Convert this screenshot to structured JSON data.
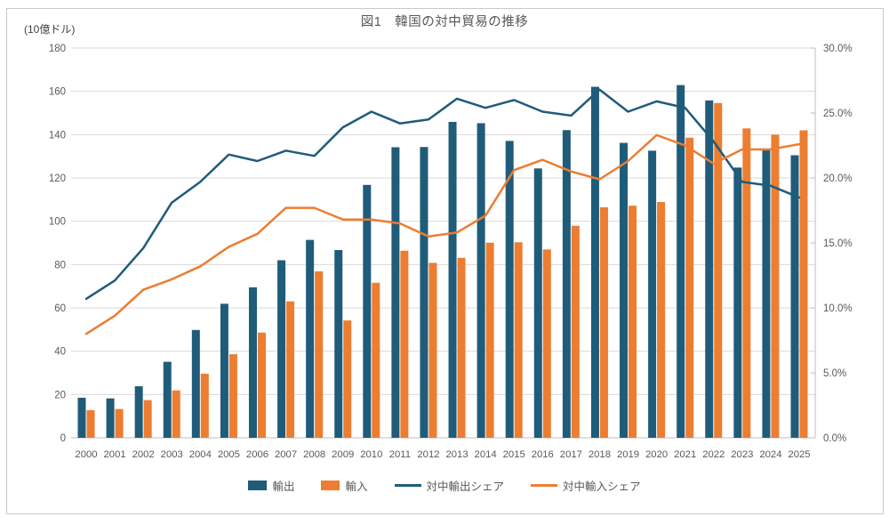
{
  "title": "図1　韓国の対中貿易の推移",
  "colors": {
    "bar_blue": "#1f5c7a",
    "bar_orange": "#ed7d31",
    "line_blue": "#1f5c7a",
    "line_orange": "#ed7d31",
    "gridline": "#d9d9d9",
    "axis_line": "#bfbfbf",
    "tick_text": "#595959",
    "title_text": "#595959"
  },
  "chart_data": {
    "type": "bar+line combo",
    "title": "図1　韓国の対中貿易の推移",
    "categories": [
      2000,
      2001,
      2002,
      2003,
      2004,
      2005,
      2006,
      2007,
      2008,
      2009,
      2010,
      2011,
      2012,
      2013,
      2014,
      2015,
      2016,
      2017,
      2018,
      2019,
      2020,
      2021,
      2022,
      2023,
      2024,
      2025
    ],
    "left_axis": {
      "label": "(10億ドル)",
      "min": 0,
      "max": 180,
      "step": 20
    },
    "right_axis": {
      "min": 0,
      "max": 30,
      "step": 5,
      "format": "percent_one_decimal"
    },
    "grid": "horizontal only",
    "legend_position": "bottom",
    "series": [
      {
        "name": "輸出",
        "type": "bar",
        "axis": "left",
        "values": [
          18.5,
          18.2,
          23.8,
          35.1,
          49.8,
          61.9,
          69.5,
          82.0,
          91.4,
          86.7,
          116.8,
          134.2,
          134.3,
          145.9,
          145.3,
          137.1,
          124.4,
          142.1,
          162.1,
          136.2,
          132.6,
          162.9,
          155.8,
          124.8,
          133.0,
          130.5
        ]
      },
      {
        "name": "輸入",
        "type": "bar",
        "axis": "left",
        "values": [
          12.8,
          13.3,
          17.4,
          21.9,
          29.6,
          38.6,
          48.6,
          63.0,
          76.9,
          54.2,
          71.6,
          86.4,
          80.8,
          83.1,
          90.1,
          90.3,
          87.0,
          97.9,
          106.5,
          107.2,
          108.9,
          138.6,
          154.6,
          142.9,
          140.0,
          142.0
        ]
      },
      {
        "name": "対中輸出シェア",
        "type": "line",
        "axis": "right",
        "values_percent": [
          10.7,
          12.1,
          14.6,
          18.1,
          19.7,
          21.8,
          21.3,
          22.1,
          21.7,
          23.9,
          25.1,
          24.2,
          24.5,
          26.1,
          25.4,
          26.0,
          25.1,
          24.8,
          26.8,
          25.1,
          25.9,
          25.4,
          22.8,
          19.7,
          19.4,
          18.5
        ]
      },
      {
        "name": "対中輸入シェア",
        "type": "line",
        "axis": "right",
        "values_percent": [
          8.0,
          9.4,
          11.4,
          12.2,
          13.2,
          14.7,
          15.7,
          17.7,
          17.7,
          16.8,
          16.8,
          16.5,
          15.5,
          15.8,
          17.1,
          20.6,
          21.4,
          20.5,
          19.9,
          21.3,
          23.3,
          22.5,
          21.1,
          22.2,
          22.2,
          22.6
        ]
      }
    ]
  }
}
